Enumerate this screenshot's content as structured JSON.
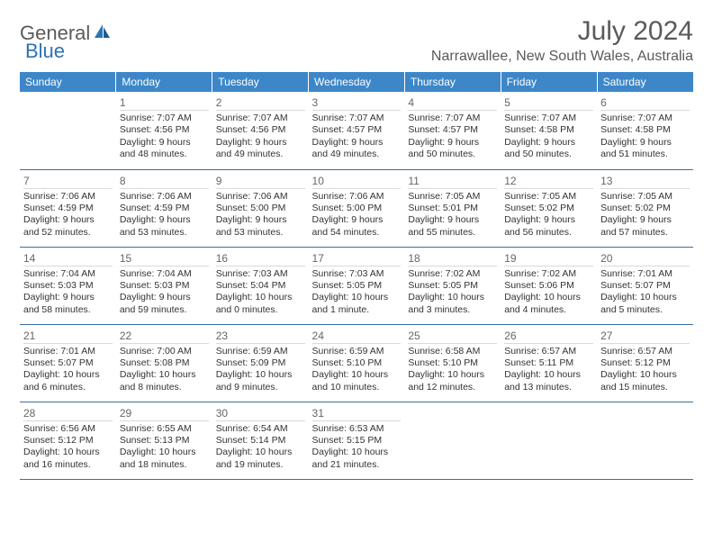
{
  "logo": {
    "general": "General",
    "blue": "Blue"
  },
  "title": "July 2024",
  "location": "Narrawallee, New South Wales, Australia",
  "colors": {
    "header_bg": "#3d87c9",
    "header_text": "#ffffff",
    "row_border": "#3d6fa3",
    "day_border": "#d9d9d9",
    "text": "#333333",
    "muted": "#5a5a5a",
    "logo_blue": "#2d72b5"
  },
  "day_headers": [
    "Sunday",
    "Monday",
    "Tuesday",
    "Wednesday",
    "Thursday",
    "Friday",
    "Saturday"
  ],
  "weeks": [
    [
      {
        "day": "",
        "sunrise": "",
        "sunset": "",
        "daylight": ""
      },
      {
        "day": "1",
        "sunrise": "Sunrise: 7:07 AM",
        "sunset": "Sunset: 4:56 PM",
        "daylight": "Daylight: 9 hours and 48 minutes."
      },
      {
        "day": "2",
        "sunrise": "Sunrise: 7:07 AM",
        "sunset": "Sunset: 4:56 PM",
        "daylight": "Daylight: 9 hours and 49 minutes."
      },
      {
        "day": "3",
        "sunrise": "Sunrise: 7:07 AM",
        "sunset": "Sunset: 4:57 PM",
        "daylight": "Daylight: 9 hours and 49 minutes."
      },
      {
        "day": "4",
        "sunrise": "Sunrise: 7:07 AM",
        "sunset": "Sunset: 4:57 PM",
        "daylight": "Daylight: 9 hours and 50 minutes."
      },
      {
        "day": "5",
        "sunrise": "Sunrise: 7:07 AM",
        "sunset": "Sunset: 4:58 PM",
        "daylight": "Daylight: 9 hours and 50 minutes."
      },
      {
        "day": "6",
        "sunrise": "Sunrise: 7:07 AM",
        "sunset": "Sunset: 4:58 PM",
        "daylight": "Daylight: 9 hours and 51 minutes."
      }
    ],
    [
      {
        "day": "7",
        "sunrise": "Sunrise: 7:06 AM",
        "sunset": "Sunset: 4:59 PM",
        "daylight": "Daylight: 9 hours and 52 minutes."
      },
      {
        "day": "8",
        "sunrise": "Sunrise: 7:06 AM",
        "sunset": "Sunset: 4:59 PM",
        "daylight": "Daylight: 9 hours and 53 minutes."
      },
      {
        "day": "9",
        "sunrise": "Sunrise: 7:06 AM",
        "sunset": "Sunset: 5:00 PM",
        "daylight": "Daylight: 9 hours and 53 minutes."
      },
      {
        "day": "10",
        "sunrise": "Sunrise: 7:06 AM",
        "sunset": "Sunset: 5:00 PM",
        "daylight": "Daylight: 9 hours and 54 minutes."
      },
      {
        "day": "11",
        "sunrise": "Sunrise: 7:05 AM",
        "sunset": "Sunset: 5:01 PM",
        "daylight": "Daylight: 9 hours and 55 minutes."
      },
      {
        "day": "12",
        "sunrise": "Sunrise: 7:05 AM",
        "sunset": "Sunset: 5:02 PM",
        "daylight": "Daylight: 9 hours and 56 minutes."
      },
      {
        "day": "13",
        "sunrise": "Sunrise: 7:05 AM",
        "sunset": "Sunset: 5:02 PM",
        "daylight": "Daylight: 9 hours and 57 minutes."
      }
    ],
    [
      {
        "day": "14",
        "sunrise": "Sunrise: 7:04 AM",
        "sunset": "Sunset: 5:03 PM",
        "daylight": "Daylight: 9 hours and 58 minutes."
      },
      {
        "day": "15",
        "sunrise": "Sunrise: 7:04 AM",
        "sunset": "Sunset: 5:03 PM",
        "daylight": "Daylight: 9 hours and 59 minutes."
      },
      {
        "day": "16",
        "sunrise": "Sunrise: 7:03 AM",
        "sunset": "Sunset: 5:04 PM",
        "daylight": "Daylight: 10 hours and 0 minutes."
      },
      {
        "day": "17",
        "sunrise": "Sunrise: 7:03 AM",
        "sunset": "Sunset: 5:05 PM",
        "daylight": "Daylight: 10 hours and 1 minute."
      },
      {
        "day": "18",
        "sunrise": "Sunrise: 7:02 AM",
        "sunset": "Sunset: 5:05 PM",
        "daylight": "Daylight: 10 hours and 3 minutes."
      },
      {
        "day": "19",
        "sunrise": "Sunrise: 7:02 AM",
        "sunset": "Sunset: 5:06 PM",
        "daylight": "Daylight: 10 hours and 4 minutes."
      },
      {
        "day": "20",
        "sunrise": "Sunrise: 7:01 AM",
        "sunset": "Sunset: 5:07 PM",
        "daylight": "Daylight: 10 hours and 5 minutes."
      }
    ],
    [
      {
        "day": "21",
        "sunrise": "Sunrise: 7:01 AM",
        "sunset": "Sunset: 5:07 PM",
        "daylight": "Daylight: 10 hours and 6 minutes."
      },
      {
        "day": "22",
        "sunrise": "Sunrise: 7:00 AM",
        "sunset": "Sunset: 5:08 PM",
        "daylight": "Daylight: 10 hours and 8 minutes."
      },
      {
        "day": "23",
        "sunrise": "Sunrise: 6:59 AM",
        "sunset": "Sunset: 5:09 PM",
        "daylight": "Daylight: 10 hours and 9 minutes."
      },
      {
        "day": "24",
        "sunrise": "Sunrise: 6:59 AM",
        "sunset": "Sunset: 5:10 PM",
        "daylight": "Daylight: 10 hours and 10 minutes."
      },
      {
        "day": "25",
        "sunrise": "Sunrise: 6:58 AM",
        "sunset": "Sunset: 5:10 PM",
        "daylight": "Daylight: 10 hours and 12 minutes."
      },
      {
        "day": "26",
        "sunrise": "Sunrise: 6:57 AM",
        "sunset": "Sunset: 5:11 PM",
        "daylight": "Daylight: 10 hours and 13 minutes."
      },
      {
        "day": "27",
        "sunrise": "Sunrise: 6:57 AM",
        "sunset": "Sunset: 5:12 PM",
        "daylight": "Daylight: 10 hours and 15 minutes."
      }
    ],
    [
      {
        "day": "28",
        "sunrise": "Sunrise: 6:56 AM",
        "sunset": "Sunset: 5:12 PM",
        "daylight": "Daylight: 10 hours and 16 minutes."
      },
      {
        "day": "29",
        "sunrise": "Sunrise: 6:55 AM",
        "sunset": "Sunset: 5:13 PM",
        "daylight": "Daylight: 10 hours and 18 minutes."
      },
      {
        "day": "30",
        "sunrise": "Sunrise: 6:54 AM",
        "sunset": "Sunset: 5:14 PM",
        "daylight": "Daylight: 10 hours and 19 minutes."
      },
      {
        "day": "31",
        "sunrise": "Sunrise: 6:53 AM",
        "sunset": "Sunset: 5:15 PM",
        "daylight": "Daylight: 10 hours and 21 minutes."
      },
      {
        "day": "",
        "sunrise": "",
        "sunset": "",
        "daylight": ""
      },
      {
        "day": "",
        "sunrise": "",
        "sunset": "",
        "daylight": ""
      },
      {
        "day": "",
        "sunrise": "",
        "sunset": "",
        "daylight": ""
      }
    ]
  ]
}
